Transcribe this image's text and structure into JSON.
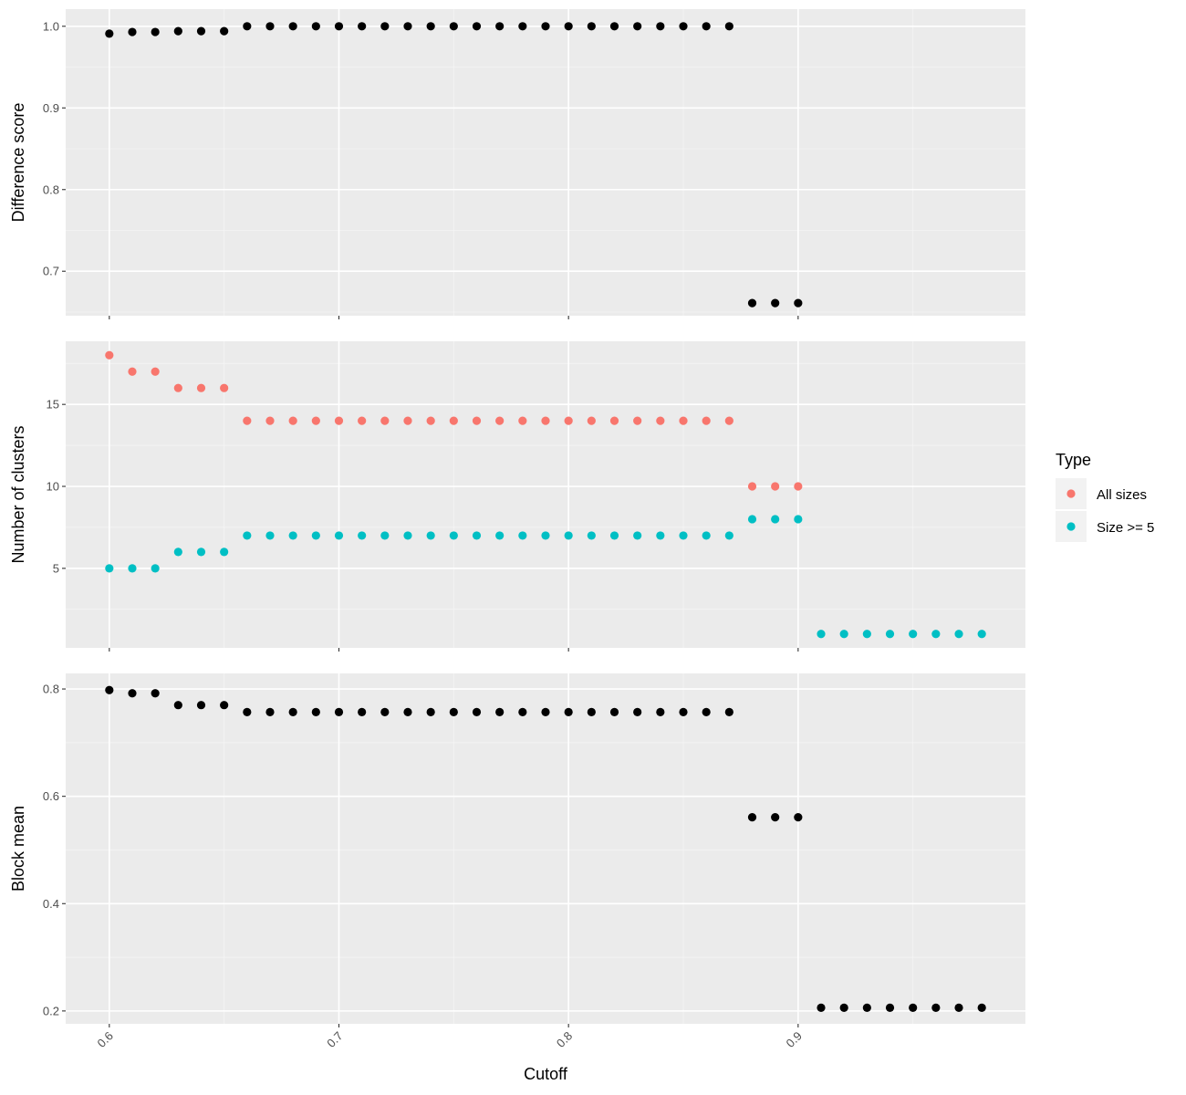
{
  "chart_data": [
    {
      "type": "scatter",
      "panel": "top",
      "xlabel": "",
      "ylabel": "Difference score",
      "xlim": [
        0.581,
        0.999
      ],
      "ylim": [
        0.6455,
        1.021
      ],
      "yticks": [
        {
          "value": 0.7,
          "label": "0.7"
        },
        {
          "value": 0.8,
          "label": "0.8"
        },
        {
          "value": 0.9,
          "label": "0.9"
        },
        {
          "value": 1.0,
          "label": "1.0"
        }
      ],
      "series": [
        {
          "color": "#000000",
          "x": [
            0.6,
            0.61,
            0.62,
            0.63,
            0.64,
            0.65,
            0.66,
            0.67,
            0.68,
            0.69,
            0.7,
            0.71,
            0.72,
            0.73,
            0.74,
            0.75,
            0.76,
            0.77,
            0.78,
            0.79,
            0.8,
            0.81,
            0.82,
            0.83,
            0.84,
            0.85,
            0.86,
            0.87,
            0.88,
            0.89,
            0.9
          ],
          "y": [
            0.991,
            0.993,
            0.993,
            0.994,
            0.994,
            0.994,
            1.0,
            1.0,
            1.0,
            1.0,
            1.0,
            1.0,
            1.0,
            1.0,
            1.0,
            1.0,
            1.0,
            1.0,
            1.0,
            1.0,
            1.0,
            1.0,
            1.0,
            1.0,
            1.0,
            1.0,
            1.0,
            1.0,
            0.661,
            0.661,
            0.661
          ]
        }
      ]
    },
    {
      "type": "scatter",
      "panel": "middle",
      "xlabel": "",
      "ylabel": "Number of clusters",
      "xlim": [
        0.581,
        0.999
      ],
      "ylim": [
        0.15,
        18.85
      ],
      "yticks": [
        {
          "value": 5,
          "label": "5"
        },
        {
          "value": 10,
          "label": "10"
        },
        {
          "value": 15,
          "label": "15"
        }
      ],
      "series": [
        {
          "name": "All sizes",
          "color": "#F8766D",
          "x": [
            0.6,
            0.61,
            0.62,
            0.63,
            0.64,
            0.65,
            0.66,
            0.67,
            0.68,
            0.69,
            0.7,
            0.71,
            0.72,
            0.73,
            0.74,
            0.75,
            0.76,
            0.77,
            0.78,
            0.79,
            0.8,
            0.81,
            0.82,
            0.83,
            0.84,
            0.85,
            0.86,
            0.87,
            0.88,
            0.89,
            0.9
          ],
          "y": [
            18,
            17,
            17,
            16,
            16,
            16,
            14,
            14,
            14,
            14,
            14,
            14,
            14,
            14,
            14,
            14,
            14,
            14,
            14,
            14,
            14,
            14,
            14,
            14,
            14,
            14,
            14,
            14,
            10,
            10,
            10
          ]
        },
        {
          "name": "Size >= 5",
          "color": "#00BFC4",
          "x": [
            0.6,
            0.61,
            0.62,
            0.63,
            0.64,
            0.65,
            0.66,
            0.67,
            0.68,
            0.69,
            0.7,
            0.71,
            0.72,
            0.73,
            0.74,
            0.75,
            0.76,
            0.77,
            0.78,
            0.79,
            0.8,
            0.81,
            0.82,
            0.83,
            0.84,
            0.85,
            0.86,
            0.87,
            0.88,
            0.89,
            0.9,
            0.91,
            0.92,
            0.93,
            0.94,
            0.95,
            0.96,
            0.97,
            0.98
          ],
          "y": [
            5,
            5,
            5,
            6,
            6,
            6,
            7,
            7,
            7,
            7,
            7,
            7,
            7,
            7,
            7,
            7,
            7,
            7,
            7,
            7,
            7,
            7,
            7,
            7,
            7,
            7,
            7,
            7,
            8,
            8,
            8,
            1,
            1,
            1,
            1,
            1,
            1,
            1,
            1
          ]
        }
      ]
    },
    {
      "type": "scatter",
      "panel": "bottom",
      "xlabel": "Cutoff",
      "ylabel": "Block mean",
      "xlim": [
        0.581,
        0.999
      ],
      "ylim": [
        0.176,
        0.829
      ],
      "yticks": [
        {
          "value": 0.2,
          "label": "0.2"
        },
        {
          "value": 0.4,
          "label": "0.4"
        },
        {
          "value": 0.6,
          "label": "0.6"
        },
        {
          "value": 0.8,
          "label": "0.8"
        }
      ],
      "xticks": [
        {
          "value": 0.6,
          "label": "0.6"
        },
        {
          "value": 0.7,
          "label": "0.7"
        },
        {
          "value": 0.8,
          "label": "0.8"
        },
        {
          "value": 0.9,
          "label": "0.9"
        }
      ],
      "series": [
        {
          "color": "#000000",
          "x": [
            0.6,
            0.61,
            0.62,
            0.63,
            0.64,
            0.65,
            0.66,
            0.67,
            0.68,
            0.69,
            0.7,
            0.71,
            0.72,
            0.73,
            0.74,
            0.75,
            0.76,
            0.77,
            0.78,
            0.79,
            0.8,
            0.81,
            0.82,
            0.83,
            0.84,
            0.85,
            0.86,
            0.87,
            0.88,
            0.89,
            0.9,
            0.91,
            0.92,
            0.93,
            0.94,
            0.95,
            0.96,
            0.97,
            0.98
          ],
          "y": [
            0.798,
            0.792,
            0.792,
            0.77,
            0.77,
            0.77,
            0.757,
            0.757,
            0.757,
            0.757,
            0.757,
            0.757,
            0.757,
            0.757,
            0.757,
            0.757,
            0.757,
            0.757,
            0.757,
            0.757,
            0.757,
            0.757,
            0.757,
            0.757,
            0.757,
            0.757,
            0.757,
            0.757,
            0.561,
            0.561,
            0.561,
            0.206,
            0.206,
            0.206,
            0.206,
            0.206,
            0.206,
            0.206,
            0.206
          ]
        }
      ]
    }
  ],
  "legend": {
    "title": "Type",
    "placement": "right",
    "items": [
      {
        "label": "All sizes",
        "color": "#F8766D"
      },
      {
        "label": "Size >= 5",
        "color": "#00BFC4"
      }
    ]
  }
}
